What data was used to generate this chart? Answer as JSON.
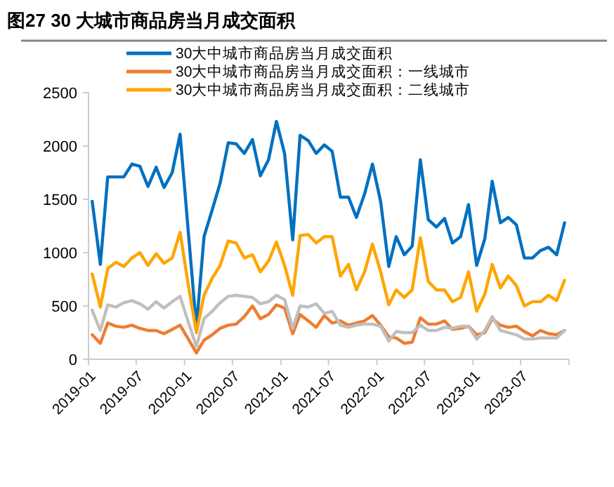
{
  "chart_data": {
    "type": "line",
    "title": "图27 30 大城市商品房当月成交面积",
    "x": [
      "2019-01-15",
      "2019-02-15",
      "2019-03-15",
      "2019-04-15",
      "2019-05-15",
      "2019-06-15",
      "2019-07-15",
      "2019-08-15",
      "2019-09-15",
      "2019-10-15",
      "2019-11-15",
      "2019-12-15",
      "2020-01-15",
      "2020-02-15",
      "2020-03-15",
      "2020-04-15",
      "2020-05-15",
      "2020-06-15",
      "2020-07-15",
      "2020-08-15",
      "2020-09-15",
      "2020-10-15",
      "2020-11-15",
      "2020-12-15",
      "2021-01-15",
      "2021-02-15",
      "2021-03-15",
      "2021-04-15",
      "2021-05-15",
      "2021-06-15",
      "2021-07-15",
      "2021-08-15",
      "2021-09-15",
      "2021-10-15",
      "2021-11-15",
      "2021-12-15",
      "2022-01-15",
      "2022-02-15",
      "2022-03-15",
      "2022-04-15",
      "2022-05-15",
      "2022-06-15",
      "2022-07-15",
      "2022-08-15",
      "2022-09-15",
      "2022-10-15",
      "2022-11-15",
      "2022-12-15",
      "2023-01-15",
      "2023-02-15",
      "2023-03-15",
      "2023-04-15",
      "2023-05-15",
      "2023-06-15",
      "2023-07-15",
      "2023-08-15",
      "2023-09-15",
      "2023-10-15",
      "2023-11-15",
      "2023-12-15"
    ],
    "series": [
      {
        "name": "30大中城市商品房当月成交面积",
        "color": "#0070c0",
        "values": [
          1480,
          890,
          1710,
          1710,
          1710,
          1830,
          1810,
          1620,
          1800,
          1610,
          1750,
          2110,
          1200,
          300,
          1150,
          1400,
          1650,
          2030,
          2020,
          1930,
          2060,
          1720,
          1870,
          2230,
          1930,
          1120,
          2100,
          2050,
          1930,
          2010,
          1950,
          1520,
          1520,
          1330,
          1550,
          1830,
          1480,
          870,
          1150,
          980,
          1060,
          1870,
          1310,
          1240,
          1320,
          1090,
          1150,
          1450,
          880,
          1130,
          1670,
          1280,
          1330,
          1260,
          950,
          950,
          1020,
          1050,
          980,
          1280
        ]
      },
      {
        "name": "30大中城市商品房当月成交面积：一线城市",
        "color": "#ed7d31",
        "values": [
          230,
          150,
          340,
          310,
          300,
          320,
          290,
          270,
          270,
          240,
          280,
          320,
          190,
          60,
          180,
          230,
          290,
          320,
          330,
          400,
          500,
          380,
          420,
          510,
          480,
          240,
          420,
          360,
          300,
          410,
          340,
          360,
          320,
          340,
          360,
          410,
          320,
          210,
          200,
          150,
          160,
          390,
          330,
          330,
          360,
          280,
          290,
          310,
          230,
          250,
          380,
          320,
          300,
          310,
          260,
          220,
          270,
          240,
          230,
          270
        ]
      },
      {
        "name": "30大中城市商品房当月成交面积：二线城市",
        "color": "#ffa500",
        "values": [
          800,
          490,
          850,
          910,
          870,
          950,
          1000,
          880,
          990,
          900,
          950,
          1190,
          700,
          250,
          600,
          760,
          880,
          1110,
          1090,
          950,
          980,
          820,
          920,
          1100,
          880,
          600,
          1160,
          1170,
          1090,
          1150,
          1150,
          780,
          890,
          650,
          820,
          1080,
          820,
          510,
          650,
          580,
          650,
          1140,
          730,
          650,
          650,
          540,
          580,
          820,
          450,
          610,
          890,
          670,
          780,
          690,
          500,
          540,
          540,
          600,
          550,
          740
        ]
      },
      {
        "color": "#bfbfbf",
        "values": [
          460,
          270,
          510,
          490,
          530,
          550,
          520,
          470,
          540,
          480,
          540,
          590,
          350,
          120,
          380,
          450,
          530,
          590,
          600,
          590,
          580,
          520,
          540,
          600,
          560,
          290,
          500,
          490,
          520,
          430,
          450,
          320,
          300,
          320,
          330,
          330,
          310,
          170,
          260,
          250,
          250,
          320,
          270,
          270,
          300,
          290,
          310,
          310,
          190,
          270,
          400,
          270,
          250,
          230,
          190,
          190,
          200,
          200,
          200,
          270
        ]
      }
    ],
    "xlim": [
      "2019-01",
      "2024-01"
    ],
    "xticks": [
      {
        "value": "2019-01",
        "label": "2019-01"
      },
      {
        "value": "2019-07",
        "label": "2019-07"
      },
      {
        "value": "2020-01",
        "label": "2020-01"
      },
      {
        "value": "2020-07",
        "label": "2020-07"
      },
      {
        "value": "2021-01",
        "label": "2021-01"
      },
      {
        "value": "2021-07",
        "label": "2021-07"
      },
      {
        "value": "2022-01",
        "label": "2022-01"
      },
      {
        "value": "2022-07",
        "label": "2022-07"
      },
      {
        "value": "2023-01",
        "label": "2023-01"
      },
      {
        "value": "2023-07",
        "label": "2023-07"
      }
    ],
    "ylim": [
      0,
      2500
    ],
    "yticks": [
      0,
      500,
      1000,
      1500,
      2000,
      2500
    ],
    "grid": false,
    "legend": "top left",
    "marker": "none",
    "line_style": "solid"
  }
}
